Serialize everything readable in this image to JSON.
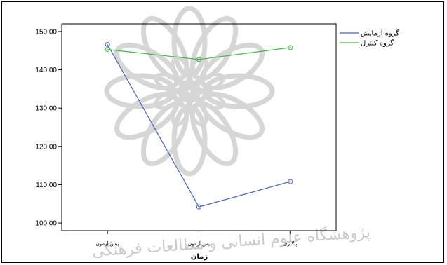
{
  "colors": {
    "series_1": "#4a62b8",
    "series_2": "#3cb846",
    "axis": "#000000",
    "watermark": "#d6d6d6"
  },
  "watermark": {
    "text": "پژوهشگاه علوم انسانی و مطالعات فرهنگی"
  },
  "chart_data": {
    "type": "line",
    "title": "",
    "xlabel": "زمان",
    "ylabel": "",
    "categories": [
      "پیش آزمون",
      "پس آزمون",
      "پیگیری"
    ],
    "ylim": [
      98,
      152
    ],
    "yticks": [
      "100.00",
      "110.00",
      "120.00",
      "130.00",
      "140.00",
      "150.00"
    ],
    "grid": false,
    "legend_position": "right",
    "series": [
      {
        "name": "گروه آزمایش",
        "values": [
          146.6,
          104.2,
          110.8
        ],
        "marker": "circle-open"
      },
      {
        "name": "گروه کنترل",
        "values": [
          145.3,
          142.7,
          145.8
        ],
        "marker": "circle-open"
      }
    ]
  }
}
